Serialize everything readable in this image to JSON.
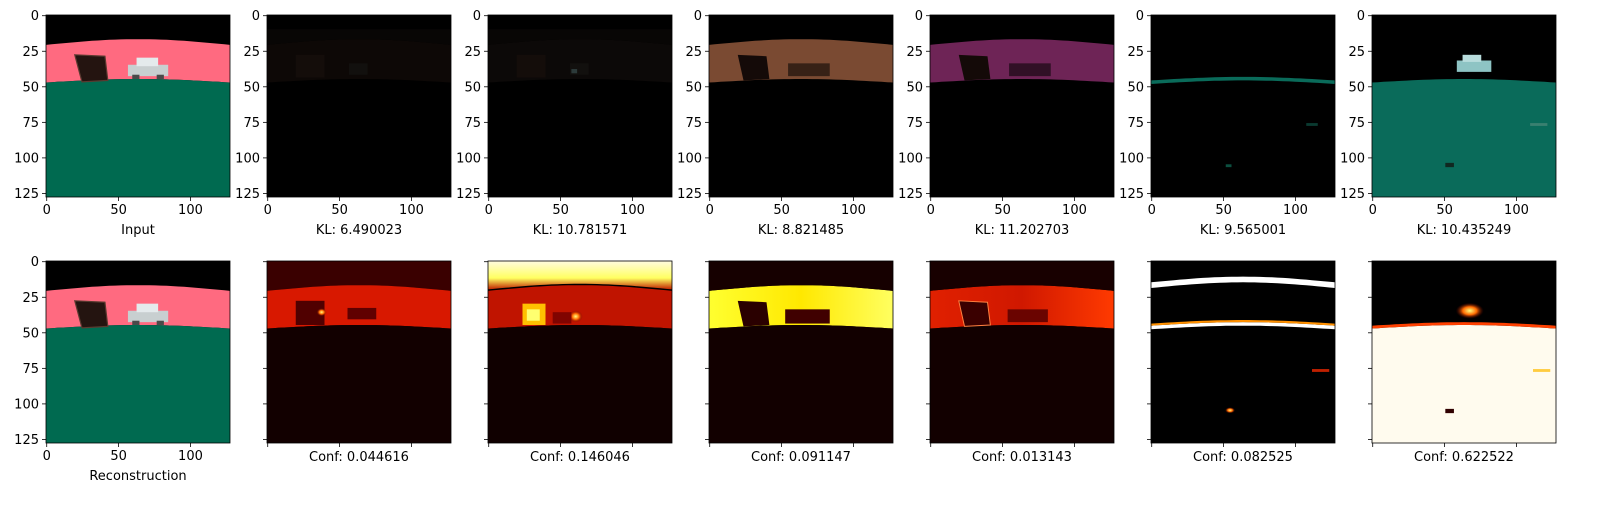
{
  "chart_data": {
    "type": "image_grid",
    "rows": 2,
    "cols": 7,
    "image_size": 128,
    "xticks": [
      0,
      50,
      100
    ],
    "yticks": [
      0,
      25,
      50,
      75,
      100,
      125
    ],
    "top_row": [
      {
        "label": "Input",
        "kind": "scene_rgb"
      },
      {
        "label": "KL: 6.490023",
        "kind": "mask_dim",
        "tint": "#0d0806"
      },
      {
        "label": "KL: 10.781571",
        "kind": "mask_dim",
        "tint": "#0c0908"
      },
      {
        "label": "KL: 8.821485",
        "kind": "mask_sky",
        "tint": "#7a4a32"
      },
      {
        "label": "KL: 11.202703",
        "kind": "mask_sky",
        "tint": "#6e2456"
      },
      {
        "label": "KL: 9.565001",
        "kind": "mask_horizon",
        "tint": "#0a6b5a"
      },
      {
        "label": "KL: 10.435249",
        "kind": "mask_ground",
        "tint": "#0a6b5a"
      }
    ],
    "bottom_row": [
      {
        "label": "Reconstruction",
        "kind": "scene_rgb"
      },
      {
        "label": "Conf: 0.044616",
        "kind": "heat_mid"
      },
      {
        "label": "Conf: 0.146046",
        "kind": "heat_top"
      },
      {
        "label": "Conf: 0.091147",
        "kind": "heat_sky_yellow"
      },
      {
        "label": "Conf: 0.013143",
        "kind": "heat_sky_red"
      },
      {
        "label": "Conf: 0.082525",
        "kind": "heat_lines"
      },
      {
        "label": "Conf: 0.622522",
        "kind": "heat_ground"
      }
    ],
    "colors": {
      "sky": "#000000",
      "band": "#ff6a80",
      "ground": "#006a50"
    }
  }
}
